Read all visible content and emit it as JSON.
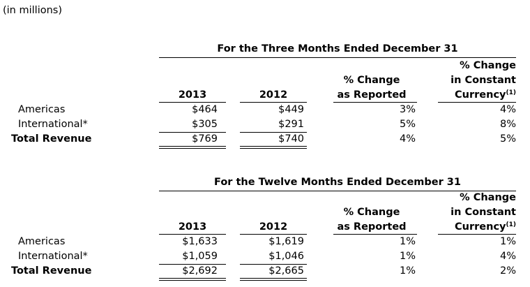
{
  "units_note": "(in millions)",
  "tables": [
    {
      "title": "For the Three Months Ended December 31",
      "headers": {
        "year1": "2013",
        "year2": "2012",
        "reported_line1": "% Change",
        "reported_line2": "as Reported",
        "constant_line1": "% Change",
        "constant_line2": "in Constant",
        "constant_line3": "Currency",
        "constant_footnote": "(1)"
      },
      "rows": [
        {
          "label": "Americas",
          "y2013": "$464",
          "y2012": "$449",
          "reported": "3%",
          "constant": "4%"
        },
        {
          "label": "International*",
          "y2013": "$305",
          "y2012": "$291",
          "reported": "5%",
          "constant": "8%"
        },
        {
          "label": "Total Revenue",
          "y2013": "$769",
          "y2012": "$740",
          "reported": "4%",
          "constant": "5%"
        }
      ]
    },
    {
      "title": "For the Twelve Months Ended December 31",
      "headers": {
        "year1": "2013",
        "year2": "2012",
        "reported_line1": "% Change",
        "reported_line2": "as Reported",
        "constant_line1": "% Change",
        "constant_line2": "in Constant",
        "constant_line3": "Currency",
        "constant_footnote": "(1)"
      },
      "rows": [
        {
          "label": "Americas",
          "y2013": "$1,633",
          "y2012": "$1,619",
          "reported": "1%",
          "constant": "1%"
        },
        {
          "label": "International*",
          "y2013": "$1,059",
          "y2012": "$1,046",
          "reported": "1%",
          "constant": "4%"
        },
        {
          "label": "Total Revenue",
          "y2013": "$2,692",
          "y2012": "$2,665",
          "reported": "1%",
          "constant": "2%"
        }
      ]
    }
  ]
}
